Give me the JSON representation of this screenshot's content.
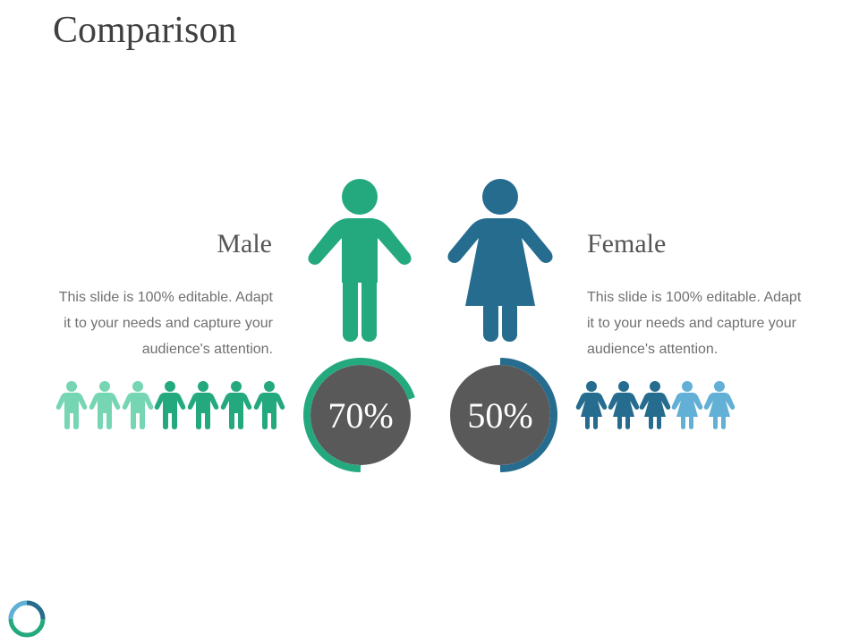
{
  "title": "Comparison",
  "male": {
    "label": "Male",
    "description": "This slide is 100% editable. Adapt it to your needs and capture your audience's attention.",
    "percent_text": "70%",
    "percent": 70,
    "color": "#24a97f",
    "icon": "male-figure-icon",
    "people_count": 7,
    "people_highlighted": 4
  },
  "female": {
    "label": "Female",
    "description": "This slide is 100% editable. Adapt it to your needs and capture your audience's attention.",
    "percent_text": "50%",
    "percent": 50,
    "color": "#256c8f",
    "icon": "female-figure-icon",
    "people_count": 5,
    "people_highlighted": 3
  },
  "colors": {
    "male_main": "#24a97f",
    "male_light": "#76d6b4",
    "female_main": "#256c8f",
    "female_light": "#62b0d6",
    "circle_fill": "#595959",
    "title_text": "#404040"
  }
}
